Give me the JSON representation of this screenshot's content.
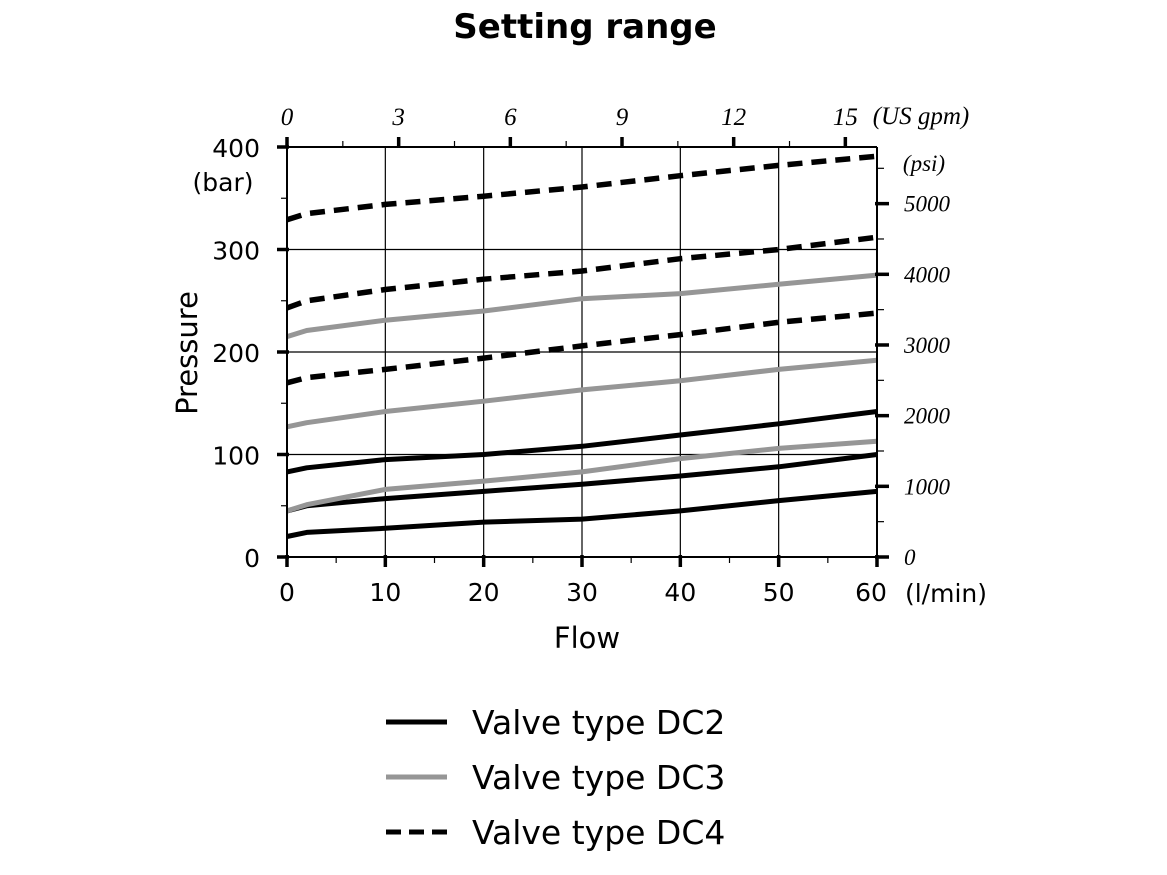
{
  "chart_data": {
    "type": "line",
    "title": "Setting range",
    "xlabel": "Flow",
    "xunit": "(l/min)",
    "ylabel": "Pressure",
    "yunit": "(bar)",
    "xlim": [
      0,
      60
    ],
    "ylim": [
      0,
      400
    ],
    "grid": true,
    "x_ticks": [
      "0",
      "10",
      "20",
      "30",
      "40",
      "50",
      "60"
    ],
    "x_tick_values": [
      0,
      10,
      20,
      30,
      40,
      50,
      60
    ],
    "y_ticks": [
      "0",
      "100",
      "200",
      "300",
      "400"
    ],
    "y_tick_values": [
      0,
      100,
      200,
      300,
      400
    ],
    "secondary_x_axis": {
      "position": "top",
      "unit": "(US gpm)",
      "ticks": [
        "0",
        "3",
        "6",
        "9",
        "12",
        "15"
      ],
      "tick_values": [
        0,
        3,
        6,
        9,
        12,
        15
      ],
      "lpm_per_unit": 3.7854
    },
    "secondary_y_axis": {
      "position": "right",
      "unit": "(psi)",
      "ticks": [
        "0",
        "1000",
        "2000",
        "3000",
        "4000",
        "5000"
      ],
      "tick_values": [
        0,
        1000,
        2000,
        3000,
        4000,
        5000
      ],
      "bar_per_unit": 0.0689476
    },
    "x": [
      0,
      2,
      10,
      20,
      30,
      40,
      50,
      60
    ],
    "series": [
      {
        "name": "DC2 low",
        "type": "DC2",
        "values": [
          20,
          24,
          28,
          34,
          37,
          45,
          55,
          64
        ]
      },
      {
        "name": "DC2 mid",
        "type": "DC2",
        "values": [
          45,
          50,
          57,
          64,
          71,
          79,
          88,
          100
        ]
      },
      {
        "name": "DC2 high",
        "type": "DC2",
        "values": [
          83,
          87,
          95,
          100,
          108,
          119,
          130,
          142
        ]
      },
      {
        "name": "DC3 low",
        "type": "DC3",
        "values": [
          45,
          51,
          66,
          74,
          83,
          96,
          106,
          113
        ]
      },
      {
        "name": "DC3 mid",
        "type": "DC3",
        "values": [
          127,
          131,
          142,
          152,
          163,
          172,
          183,
          192
        ]
      },
      {
        "name": "DC3 high",
        "type": "DC3",
        "values": [
          215,
          221,
          231,
          240,
          252,
          257,
          266,
          275
        ]
      },
      {
        "name": "DC4 low",
        "type": "DC4",
        "values": [
          170,
          175,
          183,
          194,
          206,
          217,
          229,
          238
        ]
      },
      {
        "name": "DC4 mid",
        "type": "DC4",
        "values": [
          243,
          250,
          261,
          271,
          279,
          291,
          300,
          312
        ]
      },
      {
        "name": "DC4 high",
        "type": "DC4",
        "values": [
          329,
          335,
          344,
          352,
          361,
          372,
          382,
          391
        ]
      }
    ],
    "legend": {
      "placement": "bottom-center",
      "entries": [
        {
          "label": "Valve type DC2",
          "type": "DC2",
          "style": "solid",
          "color": "#000000"
        },
        {
          "label": "Valve type DC3",
          "type": "DC3",
          "style": "solid",
          "color": "#969696"
        },
        {
          "label": "Valve type DC4",
          "type": "DC4",
          "style": "dashed",
          "color": "#000000"
        }
      ]
    }
  }
}
